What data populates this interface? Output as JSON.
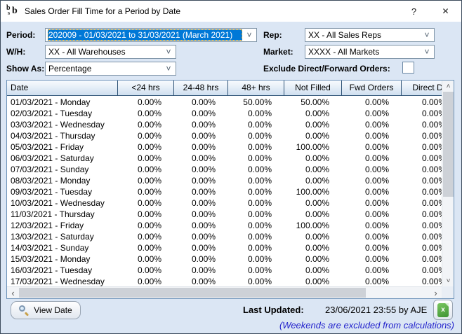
{
  "window": {
    "title": "Sales Order Fill Time for a Period by Date"
  },
  "icons": {
    "app_letters": [
      "b",
      "s",
      "b"
    ],
    "help_glyph": "?",
    "close_glyph": "✕",
    "chevron_down": "˅",
    "chevron_up": "˄",
    "chevron_left": "‹",
    "chevron_right": "›",
    "excel_letter": "x"
  },
  "colors": {
    "selection_blue": "#0078d7",
    "note_blue": "#2222cc",
    "excel_green": "#3f9334",
    "header_navy": "#2f5376"
  },
  "filters": {
    "period": {
      "label": "Period:",
      "value": "202009 - 01/03/2021 to 31/03/2021 (March 2021)"
    },
    "warehouse": {
      "label": "W/H:",
      "value": "XX - All Warehouses"
    },
    "show_as": {
      "label": "Show As:",
      "value": "Percentage"
    },
    "rep": {
      "label": "Rep:",
      "value": "XX - All Sales Reps"
    },
    "market": {
      "label": "Market:",
      "value": "XXXX - All Markets"
    },
    "exclude": {
      "label": "Exclude Direct/Forward Orders:",
      "checked": false
    }
  },
  "table": {
    "columns": [
      "Date",
      "<24 hrs",
      "24-48 hrs",
      "48+ hrs",
      "Not Filled",
      "Fwd Orders",
      "Direct D"
    ],
    "rows": [
      {
        "date": "01/03/2021 - Monday",
        "values": [
          "0.00%",
          "0.00%",
          "50.00%",
          "50.00%",
          "0.00%",
          "0.00%"
        ]
      },
      {
        "date": "02/03/2021 - Tuesday",
        "values": [
          "0.00%",
          "0.00%",
          "0.00%",
          "0.00%",
          "0.00%",
          "0.00%"
        ]
      },
      {
        "date": "03/03/2021 - Wednesday",
        "values": [
          "0.00%",
          "0.00%",
          "0.00%",
          "0.00%",
          "0.00%",
          "0.00%"
        ]
      },
      {
        "date": "04/03/2021 - Thursday",
        "values": [
          "0.00%",
          "0.00%",
          "0.00%",
          "0.00%",
          "0.00%",
          "0.00%"
        ]
      },
      {
        "date": "05/03/2021 - Friday",
        "values": [
          "0.00%",
          "0.00%",
          "0.00%",
          "100.00%",
          "0.00%",
          "0.00%"
        ]
      },
      {
        "date": "06/03/2021 - Saturday",
        "values": [
          "0.00%",
          "0.00%",
          "0.00%",
          "0.00%",
          "0.00%",
          "0.00%"
        ]
      },
      {
        "date": "07/03/2021 - Sunday",
        "values": [
          "0.00%",
          "0.00%",
          "0.00%",
          "0.00%",
          "0.00%",
          "0.00%"
        ]
      },
      {
        "date": "08/03/2021 - Monday",
        "values": [
          "0.00%",
          "0.00%",
          "0.00%",
          "0.00%",
          "0.00%",
          "0.00%"
        ]
      },
      {
        "date": "09/03/2021 - Tuesday",
        "values": [
          "0.00%",
          "0.00%",
          "0.00%",
          "100.00%",
          "0.00%",
          "0.00%"
        ]
      },
      {
        "date": "10/03/2021 - Wednesday",
        "values": [
          "0.00%",
          "0.00%",
          "0.00%",
          "0.00%",
          "0.00%",
          "0.00%"
        ]
      },
      {
        "date": "11/03/2021 - Thursday",
        "values": [
          "0.00%",
          "0.00%",
          "0.00%",
          "0.00%",
          "0.00%",
          "0.00%"
        ]
      },
      {
        "date": "12/03/2021 - Friday",
        "values": [
          "0.00%",
          "0.00%",
          "0.00%",
          "100.00%",
          "0.00%",
          "0.00%"
        ]
      },
      {
        "date": "13/03/2021 - Saturday",
        "values": [
          "0.00%",
          "0.00%",
          "0.00%",
          "0.00%",
          "0.00%",
          "0.00%"
        ]
      },
      {
        "date": "14/03/2021 - Sunday",
        "values": [
          "0.00%",
          "0.00%",
          "0.00%",
          "0.00%",
          "0.00%",
          "0.00%"
        ]
      },
      {
        "date": "15/03/2021 - Monday",
        "values": [
          "0.00%",
          "0.00%",
          "0.00%",
          "0.00%",
          "0.00%",
          "0.00%"
        ]
      },
      {
        "date": "16/03/2021 - Tuesday",
        "values": [
          "0.00%",
          "0.00%",
          "0.00%",
          "0.00%",
          "0.00%",
          "0.00%"
        ]
      },
      {
        "date": "17/03/2021 - Wednesday",
        "values": [
          "0.00%",
          "0.00%",
          "0.00%",
          "0.00%",
          "0.00%",
          "0.00%"
        ]
      }
    ]
  },
  "footer": {
    "view_date_label": "View Date",
    "last_updated_label": "Last Updated:",
    "last_updated_value": "23/06/2021 23:55 by AJE",
    "note": "(Weekends are excluded from calculations)"
  }
}
